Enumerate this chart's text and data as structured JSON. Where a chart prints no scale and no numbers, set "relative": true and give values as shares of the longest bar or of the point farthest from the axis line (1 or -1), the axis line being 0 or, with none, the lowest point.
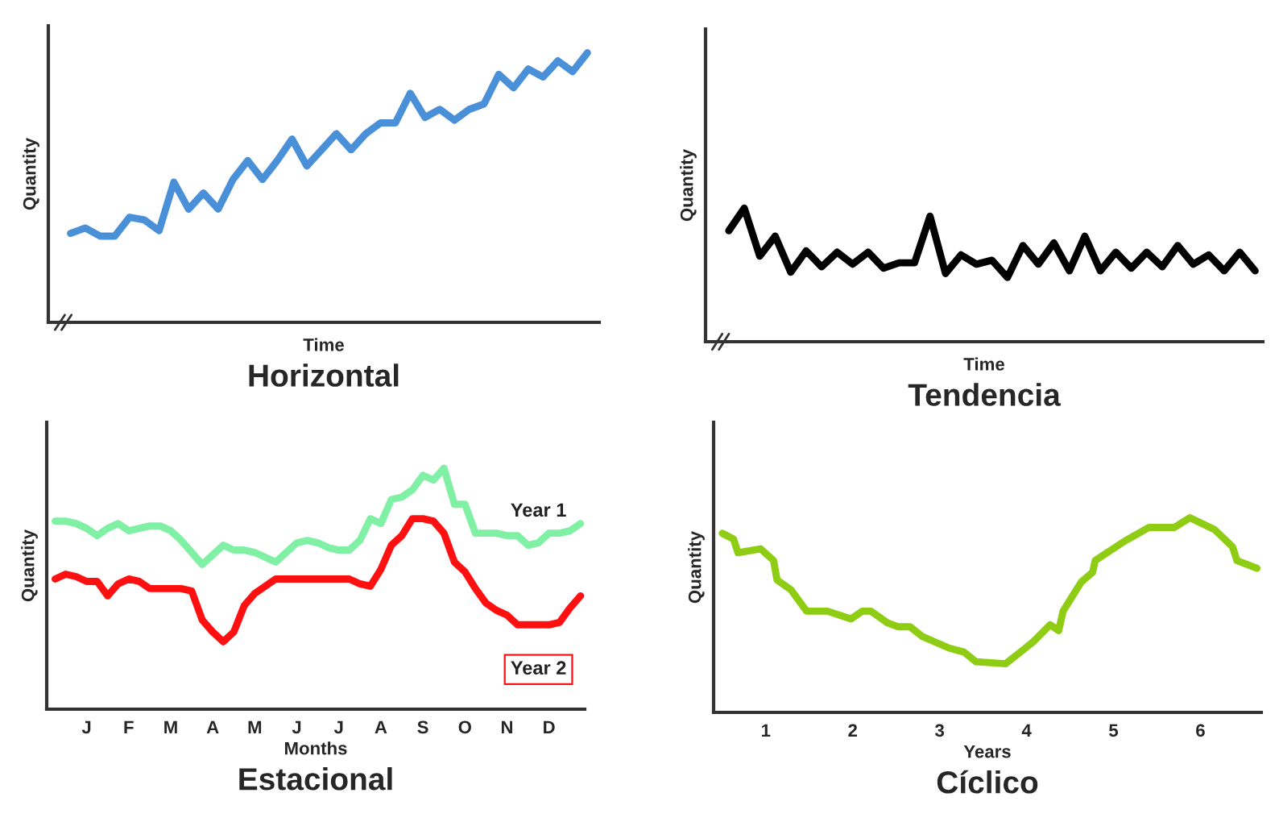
{
  "chart_data": [
    {
      "type": "line",
      "title": "Horizontal",
      "xlabel": "Time",
      "ylabel": "Quantity",
      "relative": true,
      "color": "#4a90d9",
      "categories": [
        null,
        null,
        null,
        null,
        null,
        null,
        null,
        null,
        null,
        null,
        null,
        null,
        null,
        null,
        null,
        null,
        null,
        null,
        null,
        null,
        null,
        null,
        null,
        null,
        null,
        null,
        null,
        null,
        null,
        null,
        null,
        null,
        null,
        null,
        null,
        null
      ],
      "values": [
        0.33,
        0.35,
        0.32,
        0.32,
        0.39,
        0.38,
        0.34,
        0.52,
        0.42,
        0.48,
        0.42,
        0.53,
        0.6,
        0.53,
        0.6,
        0.68,
        0.58,
        0.64,
        0.7,
        0.64,
        0.7,
        0.74,
        0.74,
        0.85,
        0.76,
        0.79,
        0.75,
        0.79,
        0.81,
        0.92,
        0.87,
        0.94,
        0.91,
        0.97,
        0.93,
        1
      ]
    },
    {
      "type": "line",
      "title": "Tendencia",
      "xlabel": "Time",
      "ylabel": "Quantity",
      "relative": true,
      "color": "#000000",
      "categories": [
        null,
        null,
        null,
        null,
        null,
        null,
        null,
        null,
        null,
        null,
        null,
        null,
        null,
        null,
        null,
        null,
        null,
        null,
        null,
        null,
        null,
        null,
        null,
        null,
        null,
        null,
        null,
        null,
        null,
        null,
        null,
        null,
        null,
        null,
        null
      ],
      "values": [
        0.83,
        1,
        0.64,
        0.79,
        0.52,
        0.68,
        0.56,
        0.67,
        0.58,
        0.67,
        0.55,
        0.59,
        0.59,
        0.94,
        0.51,
        0.65,
        0.58,
        0.61,
        0.48,
        0.72,
        0.58,
        0.74,
        0.53,
        0.79,
        0.53,
        0.67,
        0.55,
        0.67,
        0.56,
        0.72,
        0.58,
        0.65,
        0.53,
        0.67,
        0.53
      ]
    },
    {
      "type": "line",
      "title": "Estacional",
      "xlabel": "Months",
      "ylabel": "Quantity",
      "relative": true,
      "categories": [
        null,
        null,
        null,
        "J",
        null,
        null,
        null,
        "F",
        null,
        null,
        null,
        "M",
        null,
        null,
        null,
        "A",
        null,
        null,
        null,
        "M",
        null,
        null,
        null,
        "J",
        null,
        null,
        null,
        "J",
        null,
        null,
        null,
        "A",
        null,
        null,
        null,
        "S",
        null,
        null,
        null,
        "O",
        null,
        null,
        null,
        "N",
        null,
        null,
        null,
        "D",
        null,
        null,
        null
      ],
      "series": [
        {
          "name": "Year 1",
          "color": "#80f0a4",
          "values": [
            0.78,
            0.78,
            0.77,
            0.75,
            0.72,
            0.75,
            0.77,
            0.74,
            0.75,
            0.76,
            0.76,
            0.74,
            0.7,
            0.65,
            0.6,
            0.64,
            0.68,
            0.66,
            0.66,
            0.65,
            0.63,
            0.61,
            0.65,
            0.69,
            0.7,
            0.69,
            0.67,
            0.66,
            0.66,
            0.7,
            0.79,
            0.77,
            0.87,
            0.88,
            0.91,
            0.97,
            0.95,
            1,
            0.85,
            0.85,
            0.73,
            0.73,
            0.73,
            0.72,
            0.72,
            0.68,
            0.69,
            0.73,
            0.73,
            0.74,
            0.77
          ]
        },
        {
          "name": "Year 2",
          "color": "#ff1010",
          "values": [
            0.54,
            0.56,
            0.55,
            0.53,
            0.53,
            0.47,
            0.52,
            0.54,
            0.53,
            0.5,
            0.5,
            0.5,
            0.5,
            0.49,
            0.37,
            0.32,
            0.28,
            0.32,
            0.43,
            0.48,
            0.51,
            0.54,
            0.54,
            0.54,
            0.54,
            0.54,
            0.54,
            0.54,
            0.54,
            0.52,
            0.51,
            0.58,
            0.68,
            0.72,
            0.79,
            0.79,
            0.78,
            0.73,
            0.61,
            0.57,
            0.5,
            0.44,
            0.41,
            0.39,
            0.35,
            0.35,
            0.35,
            0.35,
            0.36,
            0.42,
            0.47
          ]
        }
      ]
    },
    {
      "type": "line",
      "title": "Cíclico",
      "xlabel": "Years",
      "ylabel": "Quantity",
      "relative": true,
      "color": "#8fcc14",
      "xlim": [
        0.4,
        6.7
      ],
      "xticks": [
        1,
        2,
        3,
        4,
        5,
        6
      ],
      "x": [
        0.5,
        0.63,
        0.68,
        0.94,
        1.09,
        1.13,
        1.29,
        1.47,
        1.71,
        1.98,
        2.11,
        2.21,
        2.4,
        2.52,
        2.66,
        2.8,
        3.11,
        3.28,
        3.42,
        3.76,
        4.07,
        4.27,
        4.37,
        4.42,
        4.63,
        4.76,
        4.79,
        5.13,
        5.41,
        5.7,
        5.88,
        6.16,
        6.37,
        6.42,
        6.65
      ],
      "values": [
        0.92,
        0.89,
        0.82,
        0.84,
        0.78,
        0.68,
        0.63,
        0.52,
        0.52,
        0.48,
        0.52,
        0.52,
        0.46,
        0.44,
        0.44,
        0.39,
        0.33,
        0.31,
        0.26,
        0.25,
        0.36,
        0.45,
        0.42,
        0.52,
        0.67,
        0.72,
        0.78,
        0.88,
        0.95,
        0.95,
        1,
        0.94,
        0.85,
        0.78,
        0.74
      ]
    }
  ]
}
